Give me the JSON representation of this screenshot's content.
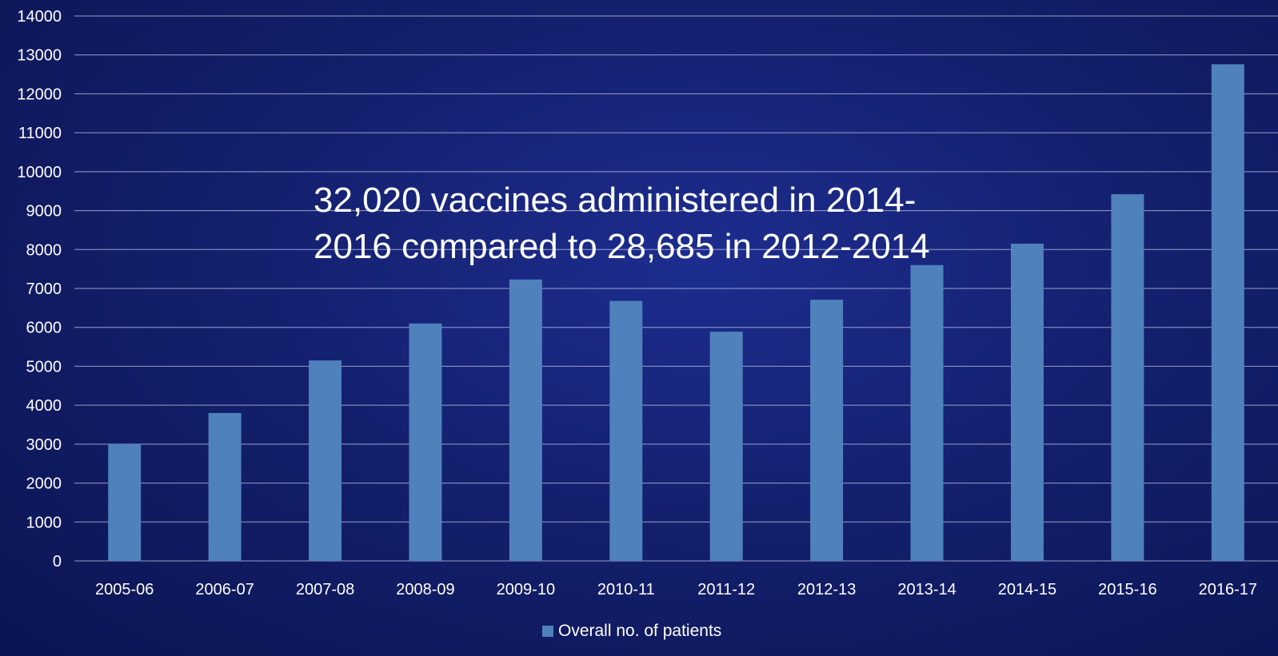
{
  "chart_data": {
    "type": "bar",
    "categories": [
      "2005-06",
      "2006-07",
      "2007-08",
      "2008-09",
      "2009-10",
      "2010-11",
      "2011-12",
      "2012-13",
      "2013-14",
      "2014-15",
      "2015-16",
      "2016-17"
    ],
    "series": [
      {
        "name": "Overall no. of patients",
        "values": [
          3000,
          3800,
          5150,
          6100,
          7230,
          6680,
          5890,
          6710,
          7600,
          8150,
          9420,
          12760
        ],
        "color": "#4f81bd"
      }
    ],
    "ylim": [
      0,
      14000
    ],
    "yticks": [
      0,
      1000,
      2000,
      3000,
      4000,
      5000,
      6000,
      7000,
      8000,
      9000,
      10000,
      11000,
      12000,
      13000,
      14000
    ],
    "grid": true,
    "legend_position": "bottom",
    "annotation": "32,020 vaccines administered in 2014-\n2016 compared to 28,685 in 2012-2014"
  }
}
